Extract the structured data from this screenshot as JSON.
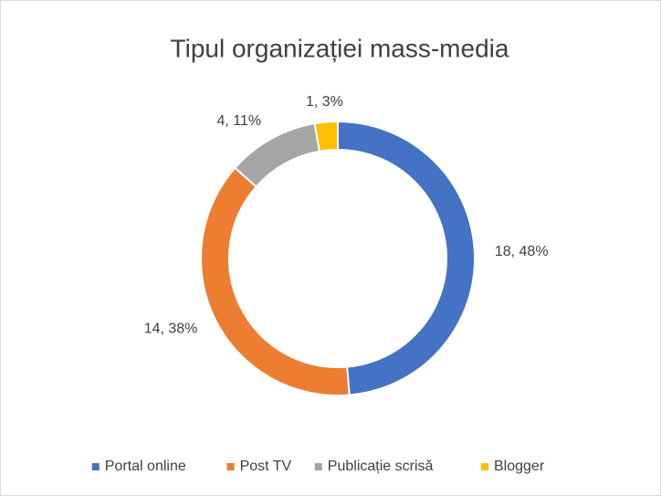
{
  "chart_data": {
    "type": "donut",
    "title": "Tipul organizației mass-media",
    "categories": [
      "Portal online",
      "Post TV",
      "Publicație scrisă",
      "Blogger"
    ],
    "values": [
      18,
      14,
      4,
      1
    ],
    "value_labels": [
      "18, 48%",
      "14, 38%",
      "4, 11%",
      "1, 3%"
    ],
    "colors": [
      "#4472c4",
      "#ed7d31",
      "#a5a5a5",
      "#ffc000"
    ],
    "legend": "bottom"
  }
}
